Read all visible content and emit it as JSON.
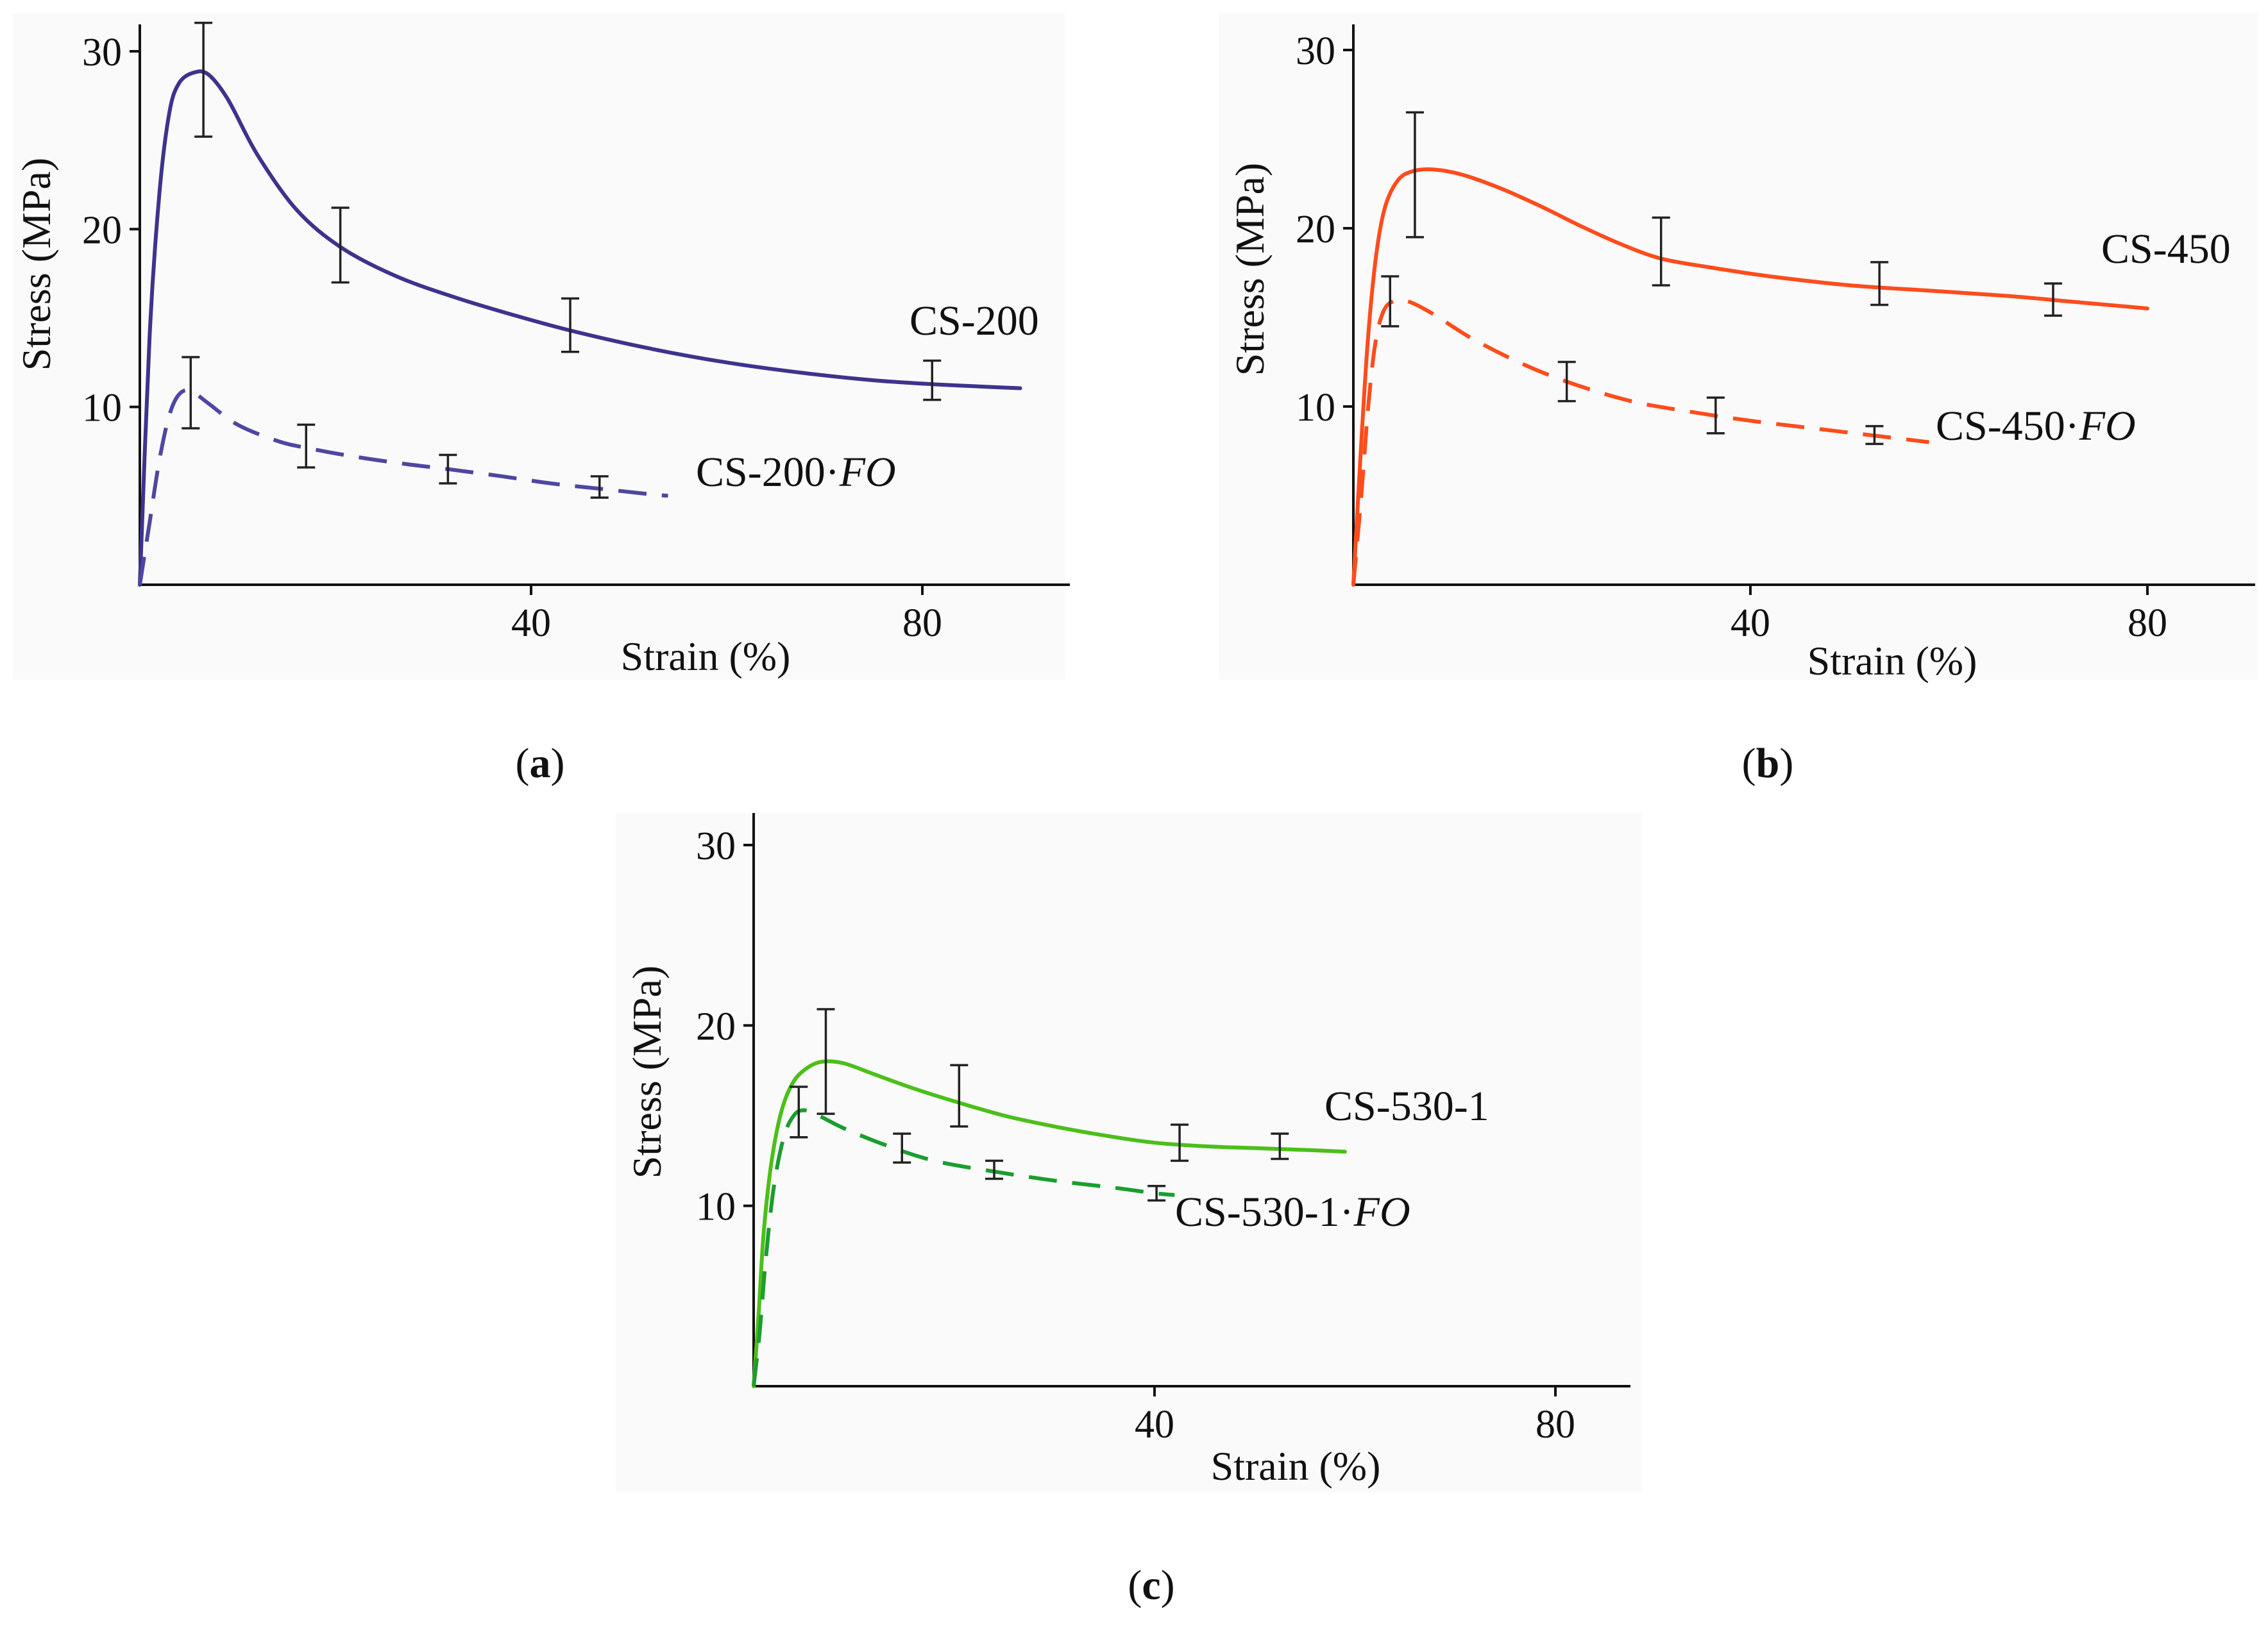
{
  "chart_data": [
    {
      "panel": "a",
      "panel_label": "a",
      "type": "line",
      "xlabel": "Strain (%)",
      "ylabel": "Stress (MPa)",
      "x_ticks": [
        40,
        80
      ],
      "y_ticks": [
        10,
        20,
        30
      ],
      "xlim": [
        0,
        93
      ],
      "ylim": [
        0,
        31.5
      ],
      "series": [
        {
          "name": "CS-200",
          "label_main": "CS-200",
          "label_fo": "",
          "style": "solid",
          "color": "#3e338c",
          "points": [
            [
              0,
              0
            ],
            [
              1,
              14
            ],
            [
              2,
              22
            ],
            [
              3,
              26.5
            ],
            [
              4,
              28.2
            ],
            [
              5.5,
              28.8
            ],
            [
              7,
              28.7
            ],
            [
              9,
              27.3
            ],
            [
              12,
              24.2
            ],
            [
              16,
              21.1
            ],
            [
              20.5,
              19
            ],
            [
              26,
              17.4
            ],
            [
              32,
              16.2
            ],
            [
              38,
              15.2
            ],
            [
              44,
              14.3
            ],
            [
              52,
              13.3
            ],
            [
              60,
              12.5
            ],
            [
              68,
              11.9
            ],
            [
              75,
              11.5
            ],
            [
              82,
              11.25
            ],
            [
              88,
              11.1
            ],
            [
              90,
              11.05
            ]
          ],
          "error_bars": [
            {
              "x": 6.5,
              "y": 28.4,
              "err": 3.2
            },
            {
              "x": 20.5,
              "y": 19.1,
              "err": 2.1
            },
            {
              "x": 44,
              "y": 14.6,
              "err": 1.5
            },
            {
              "x": 81,
              "y": 11.5,
              "err": 1.1
            }
          ]
        },
        {
          "name": "CS-200·FO",
          "label_main": "CS-200·",
          "label_fo": "FO",
          "style": "dashed",
          "color": "#4f46a2",
          "points": [
            [
              0,
              0
            ],
            [
              1,
              3.5
            ],
            [
              2,
              7
            ],
            [
              3,
              9.5
            ],
            [
              4,
              10.7
            ],
            [
              5.2,
              10.9
            ],
            [
              7,
              10.2
            ],
            [
              10,
              9
            ],
            [
              14,
              8.1
            ],
            [
              17,
              7.7
            ],
            [
              22,
              7.2
            ],
            [
              27,
              6.8
            ],
            [
              31.5,
              6.5
            ],
            [
              37,
              6.1
            ],
            [
              42,
              5.7
            ],
            [
              47,
              5.4
            ],
            [
              52,
              5.1
            ],
            [
              54,
              5
            ]
          ],
          "error_bars": [
            {
              "x": 5.2,
              "y": 10.8,
              "err": 2.0
            },
            {
              "x": 17,
              "y": 7.8,
              "err": 1.2
            },
            {
              "x": 31.5,
              "y": 6.5,
              "err": 0.8
            },
            {
              "x": 47,
              "y": 5.5,
              "err": 0.6
            }
          ]
        }
      ]
    },
    {
      "panel": "b",
      "panel_label": "b",
      "type": "line",
      "xlabel": "Strain (%)",
      "ylabel": "Stress (MPa)",
      "x_ticks": [
        40,
        80
      ],
      "y_ticks": [
        10,
        20,
        30
      ],
      "xlim": [
        0,
        91
      ],
      "ylim": [
        0,
        31.5
      ],
      "series": [
        {
          "name": "CS-450",
          "label_main": "CS-450",
          "label_fo": "",
          "style": "solid",
          "color": "#ff4c1c",
          "points": [
            [
              0,
              0
            ],
            [
              0.8,
              8
            ],
            [
              1.5,
              14
            ],
            [
              2.3,
              18.5
            ],
            [
              3.2,
              21.2
            ],
            [
              4.5,
              22.7
            ],
            [
              6,
              23.2
            ],
            [
              8,
              23.3
            ],
            [
              11,
              23
            ],
            [
              15,
              22.2
            ],
            [
              19,
              21.2
            ],
            [
              23,
              20.1
            ],
            [
              27,
              19.1
            ],
            [
              31,
              18.3
            ],
            [
              36,
              17.8
            ],
            [
              42,
              17.3
            ],
            [
              50,
              16.8
            ],
            [
              58,
              16.5
            ],
            [
              66,
              16.2
            ],
            [
              72,
              15.9
            ],
            [
              78,
              15.6
            ],
            [
              80,
              15.5
            ]
          ],
          "error_bars": [
            {
              "x": 6.2,
              "y": 23.0,
              "err": 3.5
            },
            {
              "x": 31,
              "y": 18.7,
              "err": 1.9
            },
            {
              "x": 53,
              "y": 16.9,
              "err": 1.2
            },
            {
              "x": 70.5,
              "y": 16.0,
              "err": 0.9
            }
          ]
        },
        {
          "name": "CS-450·FO",
          "label_main": "CS-450·",
          "label_fo": "FO",
          "style": "dashed",
          "color": "#ff4c1c",
          "points": [
            [
              0,
              0
            ],
            [
              0.8,
              5
            ],
            [
              1.5,
              10
            ],
            [
              2.2,
              13.5
            ],
            [
              3,
              15.3
            ],
            [
              4,
              15.9
            ],
            [
              5.5,
              15.9
            ],
            [
              8,
              15.2
            ],
            [
              12,
              13.8
            ],
            [
              17,
              12.4
            ],
            [
              22,
              11.3
            ],
            [
              28,
              10.3
            ],
            [
              34,
              9.7
            ],
            [
              40,
              9.2
            ],
            [
              46,
              8.8
            ],
            [
              52,
              8.4
            ],
            [
              58,
              8
            ]
          ],
          "error_bars": [
            {
              "x": 3.7,
              "y": 15.9,
              "err": 1.4
            },
            {
              "x": 21.5,
              "y": 11.4,
              "err": 1.1
            },
            {
              "x": 36.5,
              "y": 9.5,
              "err": 1.0
            },
            {
              "x": 52.5,
              "y": 8.4,
              "err": 0.5
            }
          ]
        }
      ]
    },
    {
      "panel": "c",
      "panel_label": "c",
      "type": "line",
      "xlabel": "Strain (%)",
      "ylabel": "Stress (MPa)",
      "x_ticks": [
        40,
        80
      ],
      "y_ticks": [
        10,
        20,
        30
      ],
      "xlim": [
        0,
        88
      ],
      "ylim": [
        0,
        31.5
      ],
      "series": [
        {
          "name": "CS-530-1",
          "label_main": "CS-530-1",
          "label_fo": "",
          "style": "solid",
          "color": "#4cbf1a",
          "points": [
            [
              0,
              0
            ],
            [
              0.5,
              4
            ],
            [
              1,
              8.5
            ],
            [
              1.8,
              12.5
            ],
            [
              2.8,
              15.3
            ],
            [
              4,
              16.9
            ],
            [
              5.5,
              17.7
            ],
            [
              7,
              18
            ],
            [
              9,
              17.9
            ],
            [
              12,
              17.3
            ],
            [
              16,
              16.5
            ],
            [
              20,
              15.8
            ],
            [
              25,
              15
            ],
            [
              30,
              14.4
            ],
            [
              35,
              13.9
            ],
            [
              40,
              13.5
            ],
            [
              45,
              13.3
            ],
            [
              50,
              13.2
            ],
            [
              55,
              13.1
            ],
            [
              59,
              13
            ]
          ],
          "error_bars": [
            {
              "x": 7.2,
              "y": 18.0,
              "err": 2.9
            },
            {
              "x": 20.5,
              "y": 16.1,
              "err": 1.7
            },
            {
              "x": 42.5,
              "y": 13.5,
              "err": 1.0
            },
            {
              "x": 52.5,
              "y": 13.3,
              "err": 0.7
            }
          ]
        },
        {
          "name": "CS-530-1·FO",
          "label_main": "CS-530-1·",
          "label_fo": "FO",
          "style": "dashed",
          "color": "#1a9e2e",
          "points": [
            [
              0,
              0
            ],
            [
              0.6,
              3
            ],
            [
              1.2,
              7
            ],
            [
              2,
              11
            ],
            [
              3,
              13.8
            ],
            [
              4,
              15
            ],
            [
              5,
              15.3
            ],
            [
              6.5,
              15
            ],
            [
              9,
              14.3
            ],
            [
              13,
              13.4
            ],
            [
              18,
              12.5
            ],
            [
              24,
              11.9
            ],
            [
              30,
              11.4
            ],
            [
              36,
              11
            ],
            [
              40,
              10.7
            ],
            [
              42,
              10.6
            ]
          ],
          "error_bars": [
            {
              "x": 4.5,
              "y": 15.2,
              "err": 1.4
            },
            {
              "x": 14.8,
              "y": 13.2,
              "err": 0.8
            },
            {
              "x": 24,
              "y": 12.0,
              "err": 0.5
            },
            {
              "x": 40.2,
              "y": 10.7,
              "err": 0.4
            }
          ]
        }
      ]
    }
  ]
}
